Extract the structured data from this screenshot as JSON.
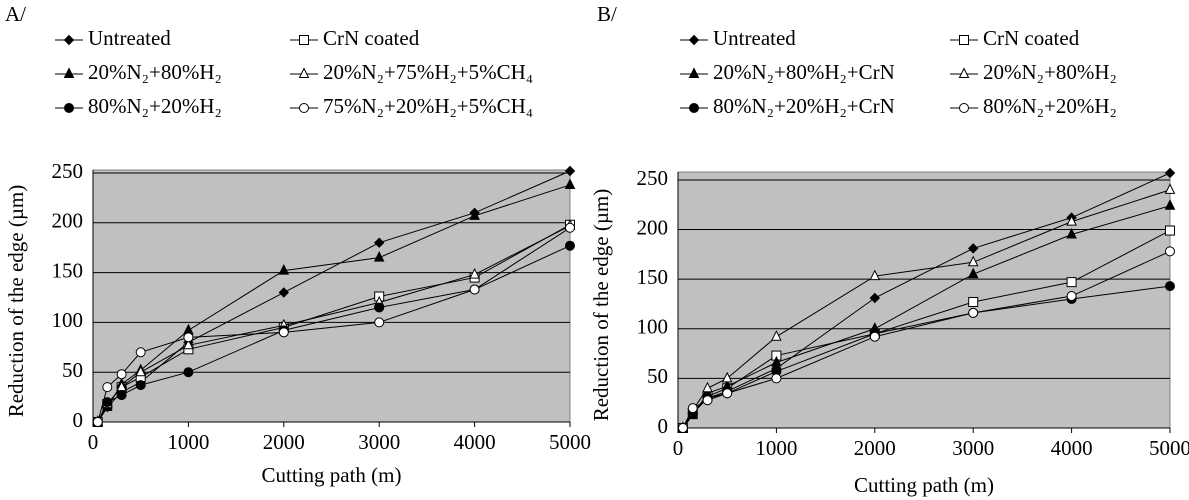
{
  "chart_data": [
    {
      "type": "line",
      "label": "A/",
      "x_label": "Cutting path (m)",
      "y_label": "Reduction of the edge (µm)",
      "x": [
        50,
        150,
        300,
        500,
        1000,
        2000,
        3000,
        4000,
        5000
      ],
      "xlim": [
        0,
        5000
      ],
      "xticks": [
        0,
        1000,
        2000,
        3000,
        4000,
        5000
      ],
      "ylim": [
        0,
        253
      ],
      "yticks": [
        0,
        50,
        100,
        150,
        200,
        250
      ],
      "grid": true,
      "background": "#c0c0c0",
      "series": [
        {
          "name": "Untreated",
          "color": "#000000",
          "marker": "diamond",
          "marker_fill": "#000000",
          "values": [
            0,
            15,
            30,
            40,
            80,
            130,
            180,
            210,
            252
          ]
        },
        {
          "name": "CrN coated",
          "color": "#000000",
          "marker": "square",
          "marker_fill": "#ffffff",
          "values": [
            0,
            18,
            35,
            45,
            73,
            95,
            126,
            145,
            198
          ]
        },
        {
          "name": "20%N₂+80%H₂",
          "color": "#000000",
          "marker": "triangle",
          "marker_fill": "#000000",
          "values": [
            0,
            15,
            38,
            52,
            92,
            152,
            165,
            207,
            238
          ]
        },
        {
          "name": "20%N₂+75%H₂+5%CH₄",
          "color": "#000000",
          "marker": "triangle",
          "marker_fill": "#ffffff",
          "values": [
            0,
            18,
            35,
            50,
            77,
            97,
            120,
            148,
            197
          ]
        },
        {
          "name": "80%N₂+20%H₂",
          "color": "#000000",
          "marker": "circle",
          "marker_fill": "#000000",
          "values": [
            0,
            20,
            27,
            37,
            50,
            92,
            115,
            133,
            177
          ]
        },
        {
          "name": "75%N₂+20%H₂+5%CH₄",
          "color": "#000000",
          "marker": "circle",
          "marker_fill": "#ffffff",
          "values": [
            0,
            35,
            48,
            70,
            85,
            90,
            100,
            133,
            195
          ]
        }
      ]
    },
    {
      "type": "line",
      "label": "B/",
      "x_label": "Cutting path (m)",
      "y_label": "Reduction of the edge (µm)",
      "x": [
        50,
        150,
        300,
        500,
        1000,
        2000,
        3000,
        4000,
        5000
      ],
      "xlim": [
        0,
        5000
      ],
      "xticks": [
        0,
        1000,
        2000,
        3000,
        4000,
        5000
      ],
      "ylim": [
        0,
        258
      ],
      "yticks": [
        0,
        50,
        100,
        150,
        200,
        250
      ],
      "grid": true,
      "background": "#c0c0c0",
      "series": [
        {
          "name": "Untreated",
          "color": "#000000",
          "marker": "diamond",
          "marker_fill": "#000000",
          "values": [
            0,
            15,
            30,
            37,
            60,
            131,
            181,
            212,
            257
          ]
        },
        {
          "name": "CrN coated",
          "color": "#000000",
          "marker": "square",
          "marker_fill": "#ffffff",
          "values": [
            0,
            15,
            32,
            40,
            73,
            95,
            127,
            147,
            199
          ]
        },
        {
          "name": "20%N₂+80%H₂+CrN",
          "color": "#000000",
          "marker": "triangle",
          "marker_fill": "#000000",
          "values": [
            0,
            13,
            35,
            42,
            66,
            100,
            155,
            195,
            224
          ]
        },
        {
          "name": "20%N₂+80%H₂",
          "color": "#000000",
          "marker": "triangle",
          "marker_fill": "#ffffff",
          "values": [
            0,
            18,
            40,
            50,
            92,
            153,
            167,
            208,
            240
          ]
        },
        {
          "name": "80%N₂+20%H₂+CrN",
          "color": "#000000",
          "marker": "circle",
          "marker_fill": "#000000",
          "values": [
            0,
            15,
            30,
            35,
            57,
            95,
            116,
            130,
            143
          ]
        },
        {
          "name": "80%N₂+20%H₂",
          "color": "#000000",
          "marker": "circle",
          "marker_fill": "#ffffff",
          "values": [
            0,
            20,
            28,
            35,
            50,
            92,
            116,
            133,
            178
          ]
        }
      ]
    }
  ]
}
